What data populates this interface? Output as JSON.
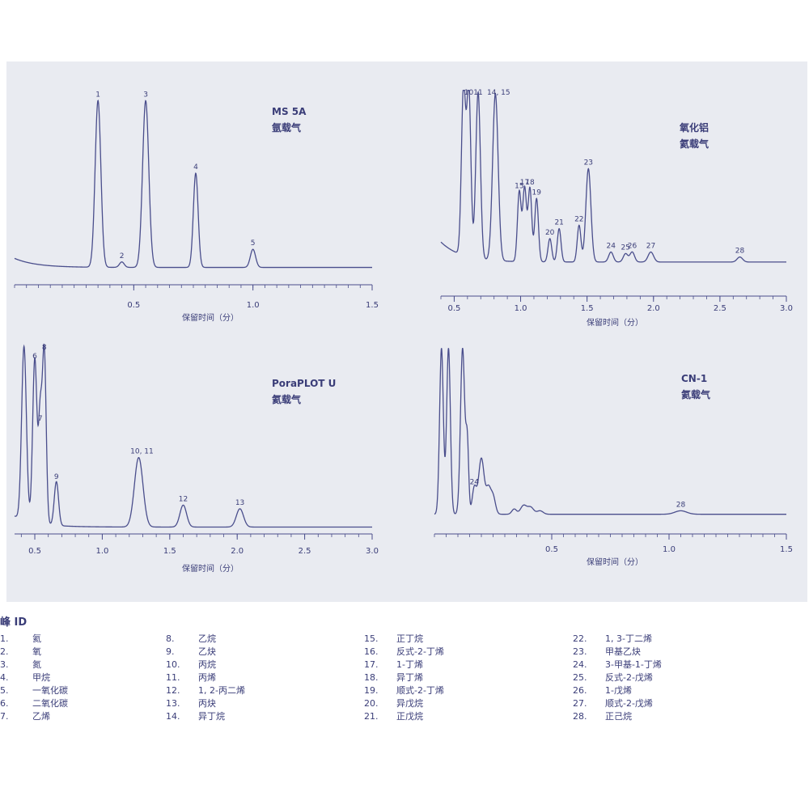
{
  "chart_data": [
    {
      "type": "line",
      "title_lines": [
        "MS 5A",
        "氩载气"
      ],
      "xlabel": "保留时间（分）",
      "xlim": [
        0,
        1.5
      ],
      "xticks": [
        {
          "v": 0.5,
          "label": "0.5"
        },
        {
          "v": 1.0,
          "label": "1.0"
        },
        {
          "v": 1.5,
          "label": "1.5"
        }
      ],
      "baseline": 0.06,
      "peaks": [
        {
          "label": "1",
          "x": 0.35,
          "height": 0.92,
          "width": 0.012
        },
        {
          "label": "2",
          "x": 0.45,
          "height": 0.03,
          "width": 0.01
        },
        {
          "label": "3",
          "x": 0.55,
          "height": 0.92,
          "width": 0.013
        },
        {
          "label": "4",
          "x": 0.76,
          "height": 0.52,
          "width": 0.01
        },
        {
          "label": "5",
          "x": 1.0,
          "height": 0.1,
          "width": 0.011
        }
      ],
      "start_decay": 0.05
    },
    {
      "type": "line",
      "title_lines": [
        "氧化铝",
        "氦载气"
      ],
      "xlabel": "保留时间（分）",
      "xlim": [
        0.4,
        3.0
      ],
      "xticks": [
        {
          "v": 0.5,
          "label": "0.5"
        },
        {
          "v": 1.0,
          "label": "1.0"
        },
        {
          "v": 1.5,
          "label": "1.5"
        },
        {
          "v": 2.0,
          "label": "2.0"
        },
        {
          "v": 2.5,
          "label": "2.5"
        },
        {
          "v": 3.0,
          "label": "3.0"
        }
      ],
      "baseline": 0.02,
      "peaks": [
        {
          "label": "",
          "x": 0.57,
          "height": 1.0,
          "width": 0.009
        },
        {
          "label": "10",
          "x": 0.61,
          "height": 1.0,
          "width": 0.009
        },
        {
          "label": "11",
          "x": 0.68,
          "height": 1.0,
          "width": 0.01
        },
        {
          "label": "14, 15",
          "x": 0.81,
          "height": 1.0,
          "width": 0.012
        },
        {
          "label": "15",
          "x": 0.99,
          "height": 0.42,
          "width": 0.008
        },
        {
          "label": "17",
          "x": 1.03,
          "height": 0.44,
          "width": 0.008
        },
        {
          "label": "18",
          "x": 1.07,
          "height": 0.44,
          "width": 0.008
        },
        {
          "label": "19",
          "x": 1.12,
          "height": 0.38,
          "width": 0.008
        },
        {
          "label": "20",
          "x": 1.22,
          "height": 0.14,
          "width": 0.008
        },
        {
          "label": "21",
          "x": 1.29,
          "height": 0.2,
          "width": 0.008
        },
        {
          "label": "22",
          "x": 1.44,
          "height": 0.22,
          "width": 0.008
        },
        {
          "label": "23",
          "x": 1.51,
          "height": 0.56,
          "width": 0.011
        },
        {
          "label": "24",
          "x": 1.68,
          "height": 0.06,
          "width": 0.01
        },
        {
          "label": "25",
          "x": 1.79,
          "height": 0.05,
          "width": 0.01
        },
        {
          "label": "26",
          "x": 1.84,
          "height": 0.06,
          "width": 0.01
        },
        {
          "label": "27",
          "x": 1.98,
          "height": 0.06,
          "width": 0.012
        },
        {
          "label": "28",
          "x": 2.65,
          "height": 0.03,
          "width": 0.012
        }
      ],
      "start_decay": 0.12
    },
    {
      "type": "line",
      "title_lines": [
        "PoraPLOT U",
        "氦载气"
      ],
      "xlabel": "保留时间（分）",
      "xlim": [
        0.35,
        3.0
      ],
      "xticks": [
        {
          "v": 0.5,
          "label": "0.5"
        },
        {
          "v": 1.0,
          "label": "1.0"
        },
        {
          "v": 1.5,
          "label": "1.5"
        },
        {
          "v": 2.0,
          "label": "2.0"
        },
        {
          "v": 2.5,
          "label": "2.5"
        },
        {
          "v": 3.0,
          "label": "3.0"
        }
      ],
      "baseline": 0.02,
      "peaks": [
        {
          "label": "",
          "x": 0.42,
          "height": 0.95,
          "width": 0.01
        },
        {
          "label": "6",
          "x": 0.5,
          "height": 0.9,
          "width": 0.009
        },
        {
          "label": "7",
          "x": 0.54,
          "height": 0.56,
          "width": 0.007
        },
        {
          "label": "8",
          "x": 0.57,
          "height": 0.95,
          "width": 0.008
        },
        {
          "label": "9",
          "x": 0.66,
          "height": 0.24,
          "width": 0.009
        },
        {
          "label": "10, 11",
          "x": 1.27,
          "height": 0.38,
          "width": 0.018
        },
        {
          "label": "12",
          "x": 1.6,
          "height": 0.12,
          "width": 0.014
        },
        {
          "label": "13",
          "x": 2.02,
          "height": 0.1,
          "width": 0.015
        }
      ],
      "start_decay": 0.06
    },
    {
      "type": "line",
      "title_lines": [
        "CN-1",
        "氦载气"
      ],
      "xlabel": "保留时间（分）",
      "xlim": [
        0,
        1.5
      ],
      "xticks": [
        {
          "v": 0.5,
          "label": "0.5"
        },
        {
          "v": 1.0,
          "label": "1.0"
        },
        {
          "v": 1.5,
          "label": "1.5"
        }
      ],
      "baseline": 0.02,
      "peaks": [
        {
          "label": "",
          "x": 0.03,
          "height": 0.95,
          "width": 0.008
        },
        {
          "label": "",
          "x": 0.06,
          "height": 0.95,
          "width": 0.008
        },
        {
          "label": "",
          "x": 0.12,
          "height": 0.95,
          "width": 0.009
        },
        {
          "label": "",
          "x": 0.14,
          "height": 0.4,
          "width": 0.006
        },
        {
          "label": "24",
          "x": 0.17,
          "height": 0.15,
          "width": 0.009
        },
        {
          "label": "",
          "x": 0.2,
          "height": 0.32,
          "width": 0.012
        },
        {
          "label": "",
          "x": 0.23,
          "height": 0.14,
          "width": 0.01
        },
        {
          "label": "",
          "x": 0.25,
          "height": 0.1,
          "width": 0.01
        },
        {
          "label": "",
          "x": 0.34,
          "height": 0.03,
          "width": 0.01
        },
        {
          "label": "",
          "x": 0.38,
          "height": 0.05,
          "width": 0.013
        },
        {
          "label": "",
          "x": 0.41,
          "height": 0.04,
          "width": 0.013
        },
        {
          "label": "",
          "x": 0.45,
          "height": 0.02,
          "width": 0.013
        },
        {
          "label": "28",
          "x": 1.05,
          "height": 0.02,
          "width": 0.025
        }
      ],
      "start_decay": 0.0
    }
  ],
  "legend": {
    "title": "峰 ID",
    "columns": [
      [
        {
          "num": "1.",
          "name": "氦"
        },
        {
          "num": "2.",
          "name": "氧"
        },
        {
          "num": "3.",
          "name": "氮"
        },
        {
          "num": "4.",
          "name": "甲烷"
        },
        {
          "num": "5.",
          "name": "一氧化碳"
        },
        {
          "num": "6.",
          "name": "二氧化碳"
        },
        {
          "num": "7.",
          "name": "乙烯"
        }
      ],
      [
        {
          "num": "8.",
          "name": "乙烷"
        },
        {
          "num": "9.",
          "name": "乙炔"
        },
        {
          "num": "10.",
          "name": "丙烷"
        },
        {
          "num": "11.",
          "name": "丙烯"
        },
        {
          "num": "12.",
          "name": "1, 2-丙二烯"
        },
        {
          "num": "13.",
          "name": "丙炔"
        },
        {
          "num": "14.",
          "name": "异丁烷"
        }
      ],
      [
        {
          "num": "15.",
          "name": "正丁烷"
        },
        {
          "num": "16.",
          "name": "反式-2-丁烯"
        },
        {
          "num": "17.",
          "name": "1-丁烯"
        },
        {
          "num": "18.",
          "name": "异丁烯"
        },
        {
          "num": "19.",
          "name": "顺式-2-丁烯"
        },
        {
          "num": "20.",
          "name": "异戊烷"
        },
        {
          "num": "21.",
          "name": "正戊烷"
        }
      ],
      [
        {
          "num": "22.",
          "name": "1, 3-丁二烯"
        },
        {
          "num": "23.",
          "name": "甲基乙炔"
        },
        {
          "num": "24.",
          "name": "3-甲基-1-丁烯"
        },
        {
          "num": "25.",
          "name": "反式-2-戊烯"
        },
        {
          "num": "26.",
          "name": "1-戊烯"
        },
        {
          "num": "27.",
          "name": "顺式-2-戊烯"
        },
        {
          "num": "28.",
          "name": "正己烷"
        }
      ]
    ]
  },
  "colors": {
    "trace": "#4a4e8c",
    "text": "#3a3d78",
    "panel": "#e9ebf1"
  }
}
